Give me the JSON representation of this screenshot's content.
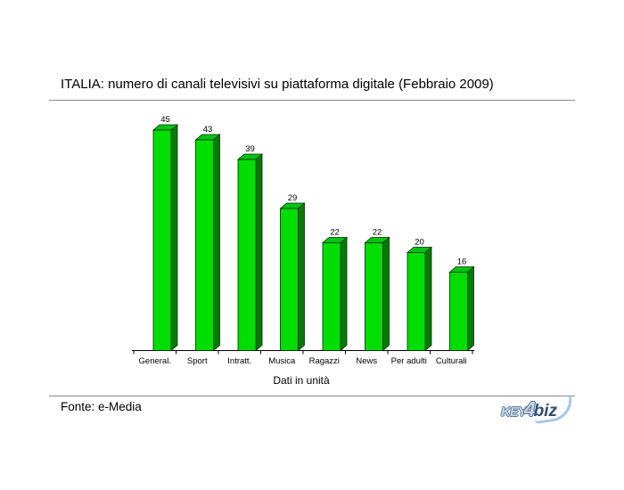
{
  "header": {
    "title": "ITALIA: numero di canali televisivi su piattaforma digitale (Febbraio 2009)"
  },
  "chart_data": {
    "type": "bar",
    "style": "3d-column",
    "title": "ITALIA: numero di canali televisivi su piattaforma digitale (Febbraio 2009)",
    "categories": [
      "General.",
      "Sport",
      "Intratt.",
      "Musica",
      "Ragazzi",
      "News",
      "Per adulti",
      "Culturali"
    ],
    "values": [
      45,
      43,
      39,
      29,
      22,
      22,
      20,
      16
    ],
    "value_labels_visible": true,
    "xlabel": "Dati in unità",
    "ylabel": "",
    "ylim": [
      0,
      50
    ],
    "grid": false,
    "legend": false,
    "colors": {
      "bar_front": "#00dd00",
      "bar_top": "#00c414",
      "bar_side": "#007c00",
      "bar_outline": "#002b00",
      "axis": "#000000",
      "text": "#000000"
    }
  },
  "footer": {
    "source": "Fonte: e-Media",
    "logo": {
      "key": "KEY",
      "four": "4",
      "biz": "biz"
    }
  }
}
